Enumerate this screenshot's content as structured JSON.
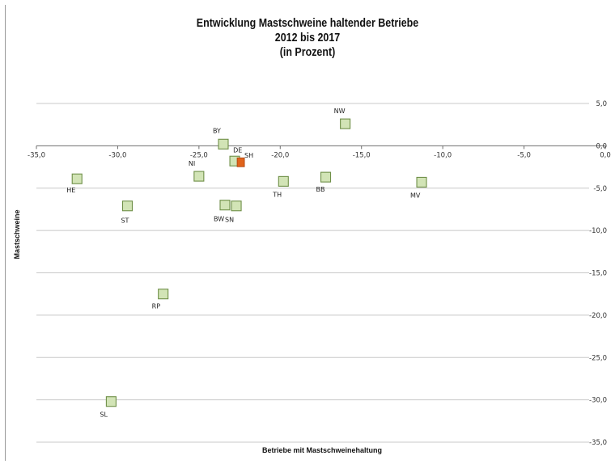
{
  "chart_data": {
    "type": "scatter",
    "title": [
      "Entwicklung Mastschweine haltender Betriebe",
      "2012 bis 2017",
      "(in Prozent)"
    ],
    "xlabel": "Betriebe mit Mastschweinehaltung",
    "ylabel": "Mastschweine",
    "xlim": [
      -35,
      0
    ],
    "ylim": [
      -35,
      5
    ],
    "x_ticks": [
      -35,
      -30,
      -25,
      -20,
      -15,
      -10,
      -5,
      0
    ],
    "x_tick_labels": [
      "-35,0",
      "-30,0",
      "-25,0",
      "-20,0",
      "-15,0",
      "-10,0",
      "-5,0",
      "0,0"
    ],
    "y_ticks": [
      5,
      0,
      -5,
      -10,
      -15,
      -20,
      -25,
      -30,
      -35
    ],
    "y_tick_labels": [
      "5,0",
      "0,0",
      "-5,0",
      "-10,0",
      "-15,0",
      "-20,0",
      "-25,0",
      "-30,0",
      "-35,0"
    ],
    "grid": "horizontal",
    "colors": {
      "point_fill": "#d2e4b6",
      "point_stroke": "#6f8f48",
      "highlight_fill": "#e0631b",
      "grid": "#c8c8c8"
    },
    "points": [
      {
        "label": "NW",
        "x": -16.0,
        "y": 2.6,
        "highlight": false
      },
      {
        "label": "BY",
        "x": -23.5,
        "y": 0.2,
        "highlight": false
      },
      {
        "label": "SH",
        "x": -22.8,
        "y": -1.8,
        "highlight": false
      },
      {
        "label": "DE",
        "x": -22.5,
        "y": -1.9,
        "highlight": true
      },
      {
        "label": "NI",
        "x": -25.0,
        "y": -3.6,
        "highlight": false
      },
      {
        "label": "HE",
        "x": -32.5,
        "y": -3.9,
        "highlight": false
      },
      {
        "label": "TH",
        "x": -19.8,
        "y": -4.2,
        "highlight": false
      },
      {
        "label": "BB",
        "x": -17.2,
        "y": -3.7,
        "highlight": false
      },
      {
        "label": "MV",
        "x": -11.3,
        "y": -4.3,
        "highlight": false
      },
      {
        "label": "ST",
        "x": -29.4,
        "y": -7.1,
        "highlight": false
      },
      {
        "label": "BW",
        "x": -23.4,
        "y": -7.0,
        "highlight": false
      },
      {
        "label": "SN",
        "x": -22.7,
        "y": -7.1,
        "highlight": false
      },
      {
        "label": "RP",
        "x": -27.2,
        "y": -17.5,
        "highlight": false
      },
      {
        "label": "SL",
        "x": -30.4,
        "y": -30.2,
        "highlight": false
      }
    ]
  }
}
